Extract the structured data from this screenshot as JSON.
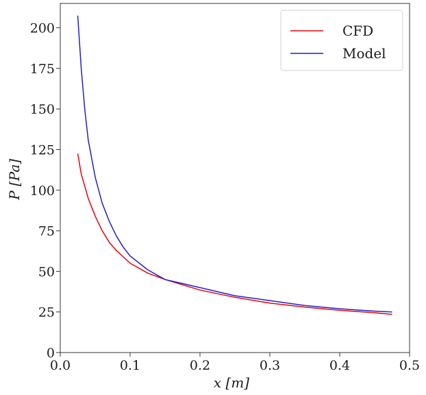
{
  "chart_data": {
    "type": "line",
    "xlabel": "x [m]",
    "ylabel": "P [Pa]",
    "xlim": [
      0.0,
      0.5
    ],
    "ylim": [
      0,
      215
    ],
    "xticks": [
      0.0,
      0.1,
      0.2,
      0.3,
      0.4,
      0.5
    ],
    "xtick_labels": [
      "0.0",
      "0.1",
      "0.2",
      "0.3",
      "0.4",
      "0.5"
    ],
    "yticks": [
      0,
      25,
      50,
      75,
      100,
      125,
      150,
      175,
      200
    ],
    "ytick_labels": [
      "0",
      "25",
      "50",
      "75",
      "100",
      "125",
      "150",
      "175",
      "200"
    ],
    "grid": false,
    "legend_position": "top-right",
    "series": [
      {
        "name": "CFD",
        "color": "#e8000b",
        "x": [
          0.025,
          0.03,
          0.04,
          0.05,
          0.06,
          0.07,
          0.08,
          0.09,
          0.1,
          0.125,
          0.15,
          0.2,
          0.25,
          0.3,
          0.35,
          0.4,
          0.45,
          0.475
        ],
        "y": [
          122.5,
          110,
          95,
          84,
          75,
          68,
          63,
          59,
          55,
          49,
          45,
          38.5,
          34,
          30.5,
          28,
          26,
          24.5,
          23.5
        ]
      },
      {
        "name": "Model",
        "color": "#1f1fcc",
        "x": [
          0.025,
          0.03,
          0.035,
          0.04,
          0.05,
          0.06,
          0.07,
          0.08,
          0.09,
          0.1,
          0.125,
          0.15,
          0.2,
          0.25,
          0.3,
          0.35,
          0.4,
          0.45,
          0.475
        ],
        "y": [
          207.5,
          175,
          150,
          131,
          108,
          92,
          81,
          72,
          65,
          59.5,
          51,
          45,
          40,
          35,
          32,
          29,
          27,
          25.5,
          25
        ]
      }
    ]
  }
}
